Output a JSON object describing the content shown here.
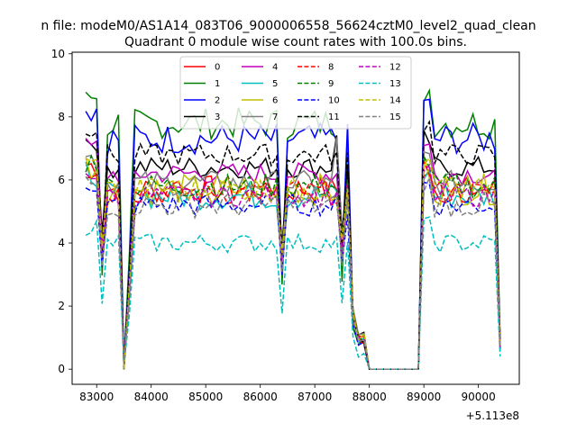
{
  "chart_data": {
    "type": "line",
    "suptitle": "n file: modeM0/AS1A14_083T06_9000006558_56624cztM0_level2_quad_clean",
    "title": "Quadrant 0 module wise count rates with 100.0s bins.",
    "xlabel": "",
    "ylabel": "",
    "x_offset_label": "+5.113e8",
    "xlim": [
      82550,
      90750
    ],
    "ylim": [
      -0.48,
      10.05
    ],
    "x_ticks": [
      83000,
      84000,
      85000,
      86000,
      87000,
      88000,
      89000,
      90000
    ],
    "y_ticks": [
      0,
      2,
      4,
      6,
      8,
      10
    ],
    "x_tick_labels": [
      "83000",
      "84000",
      "85000",
      "86000",
      "87000",
      "88000",
      "89000",
      "90000"
    ],
    "y_tick_labels": [
      "0",
      "2",
      "4",
      "6",
      "8",
      "10"
    ],
    "grid": false,
    "legend_position": "top-center",
    "legend_columns": 4,
    "series": [
      {
        "name": "0",
        "color": "#ff0000",
        "dash": "solid",
        "level": 5.7,
        "amp": 0.45,
        "dip": 3.9
      },
      {
        "name": "1",
        "color": "#008000",
        "dash": "solid",
        "level": 7.8,
        "amp": 0.5,
        "dip": 2.9
      },
      {
        "name": "2",
        "color": "#0000ff",
        "dash": "solid",
        "level": 7.3,
        "amp": 0.5,
        "dip": 3.5
      },
      {
        "name": "3",
        "color": "#000000",
        "dash": "solid",
        "level": 6.4,
        "amp": 0.35,
        "dip": 4.2
      },
      {
        "name": "4",
        "color": "#bf00bf",
        "dash": "solid",
        "level": 6.2,
        "amp": 0.35,
        "dip": 4.0
      },
      {
        "name": "5",
        "color": "#00bfbf",
        "dash": "solid",
        "level": 5.5,
        "amp": 0.45,
        "dip": 3.6
      },
      {
        "name": "6",
        "color": "#bfbf00",
        "dash": "solid",
        "level": 5.7,
        "amp": 0.5,
        "dip": 3.7
      },
      {
        "name": "7",
        "color": "#808080",
        "dash": "solid",
        "level": 5.9,
        "amp": 0.4,
        "dip": 4.1
      },
      {
        "name": "8",
        "color": "#ff0000",
        "dash": "dashed",
        "level": 5.6,
        "amp": 0.4,
        "dip": 3.8
      },
      {
        "name": "9",
        "color": "#008000",
        "dash": "dashed",
        "level": 5.8,
        "amp": 0.4,
        "dip": 3.9
      },
      {
        "name": "10",
        "color": "#0000ff",
        "dash": "dashed",
        "level": 5.2,
        "amp": 0.35,
        "dip": 3.3
      },
      {
        "name": "11",
        "color": "#000000",
        "dash": "dashed",
        "level": 6.8,
        "amp": 0.35,
        "dip": 3.8
      },
      {
        "name": "12",
        "color": "#bf00bf",
        "dash": "dashed",
        "level": 5.5,
        "amp": 0.35,
        "dip": 3.7
      },
      {
        "name": "13",
        "color": "#00bfbf",
        "dash": "dashed",
        "level": 4.0,
        "amp": 0.3,
        "dip": 2.0
      },
      {
        "name": "14",
        "color": "#bfbf00",
        "dash": "dashed",
        "level": 5.7,
        "amp": 0.4,
        "dip": 4.0
      },
      {
        "name": "15",
        "color": "#808080",
        "dash": "dashed",
        "level": 5.2,
        "amp": 0.4,
        "dip": 3.4
      }
    ],
    "x_samples": [
      82800,
      82900,
      83000,
      83100,
      83200,
      83300,
      83400,
      83500,
      83600,
      83700,
      83800,
      83900,
      84000,
      84100,
      84200,
      84300,
      84400,
      84500,
      84600,
      84700,
      84800,
      84900,
      85000,
      85100,
      85200,
      85300,
      85400,
      85500,
      85600,
      85700,
      85800,
      85900,
      86000,
      86100,
      86200,
      86300,
      86400,
      86500,
      86600,
      86700,
      86800,
      86900,
      87000,
      87100,
      87200,
      87300,
      87400,
      87500,
      87600,
      87700,
      87800,
      87900,
      88000,
      88100,
      88200,
      88300,
      88400,
      88500,
      88600,
      88700,
      88800,
      88900,
      89000,
      89100,
      89200,
      89300,
      89400,
      89500,
      89600,
      89700,
      89800,
      89900,
      90000,
      90100,
      90200,
      90300,
      90400
    ]
  }
}
